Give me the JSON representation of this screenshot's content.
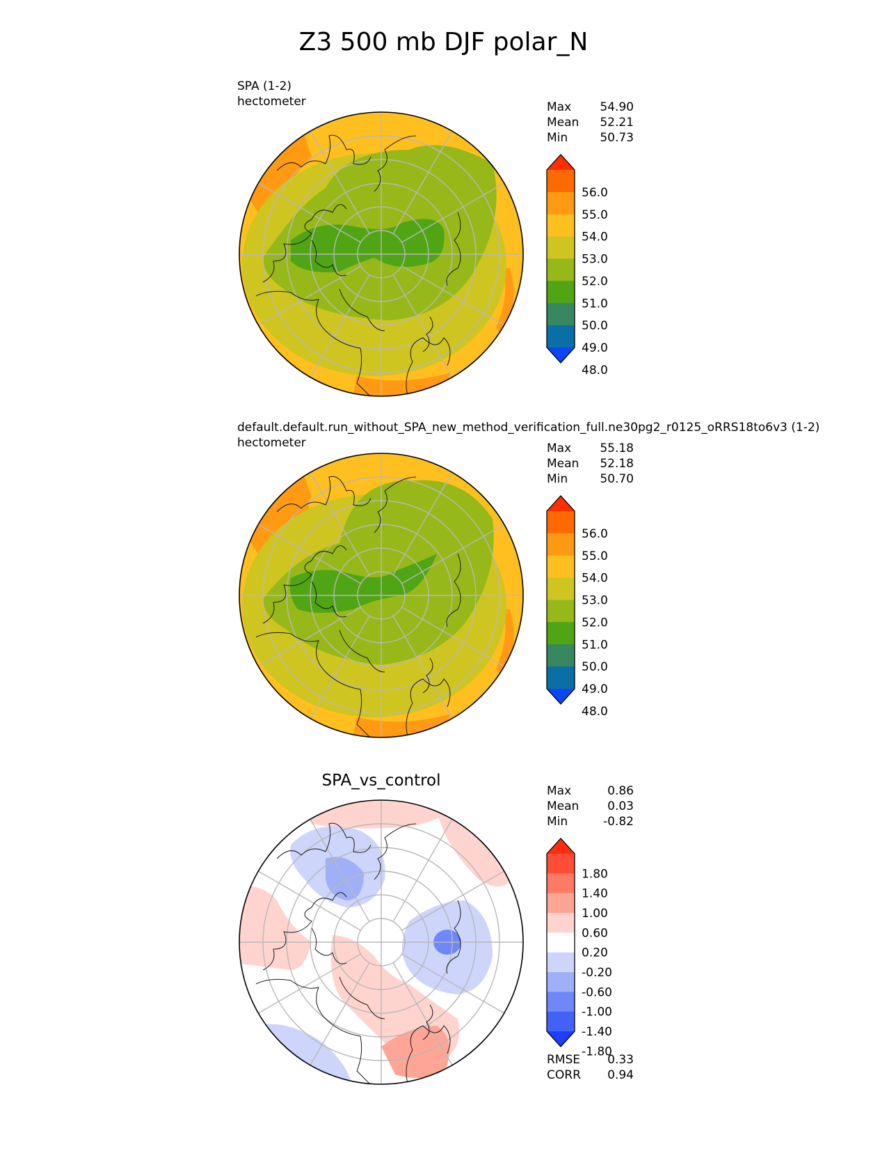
{
  "figure": {
    "title": "Z3 500 mb DJF polar_N"
  },
  "panels": [
    {
      "label_line1": "SPA (1-2)",
      "label_line2": "hectometer",
      "stats": [
        {
          "label": "Max",
          "value": "54.90"
        },
        {
          "label": "Mean",
          "value": "52.21"
        },
        {
          "label": "Min",
          "value": "50.73"
        }
      ]
    },
    {
      "label_line1": "default.default.run_without_SPA_new_method_verification_full.ne30pg2_r0125_oRRS18to6v3 (1-2)",
      "label_line2": "hectometer",
      "stats": [
        {
          "label": "Max",
          "value": "55.18"
        },
        {
          "label": "Mean",
          "value": "52.18"
        },
        {
          "label": "Min",
          "value": "50.70"
        }
      ]
    },
    {
      "title": "SPA_vs_control",
      "stats": [
        {
          "label": "Max",
          "value": "0.86"
        },
        {
          "label": "Mean",
          "value": "0.03"
        },
        {
          "label": "Min",
          "value": "-0.82"
        }
      ],
      "extra_stats": [
        {
          "label": "RMSE",
          "value": "0.33"
        },
        {
          "label": "CORR",
          "value": "0.94"
        }
      ]
    }
  ],
  "colorbars": {
    "field": {
      "ticks": [
        "56.0",
        "55.0",
        "54.0",
        "53.0",
        "52.0",
        "51.0",
        "50.0",
        "49.0",
        "48.0"
      ],
      "colors_top_to_bottom": [
        "#ff2d00",
        "#ff6a00",
        "#ff9a12",
        "#ffc01f",
        "#cfc521",
        "#97b819",
        "#4fa514",
        "#378860",
        "#0a6fa5",
        "#0c47f7"
      ]
    },
    "diff": {
      "ticks": [
        "1.80",
        "1.40",
        "1.00",
        "0.60",
        "0.20",
        "-0.20",
        "-0.60",
        "-1.00",
        "-1.40",
        "-1.80"
      ],
      "colors_top_to_bottom": [
        "#ff2d10",
        "#ff4d36",
        "#ff7a64",
        "#ffa596",
        "#ffd4cf",
        "#ffffff",
        "#cdd5fb",
        "#9fb0f8",
        "#6f88f7",
        "#4262f7",
        "#1c3ff7"
      ]
    }
  },
  "map_colors": {
    "field_outer": "#ffc01f",
    "field_rim": "#ff9a12",
    "field_ring": "#cfc521",
    "field_inner": "#97b819",
    "field_core": "#4fa514",
    "diff_pos_light": "#ffd4cf",
    "diff_pos_mid": "#ffa596",
    "diff_neg_light": "#cdd5fb",
    "diff_neg_mid": "#9fb0f8",
    "diff_neg_dark": "#6f88f7"
  }
}
